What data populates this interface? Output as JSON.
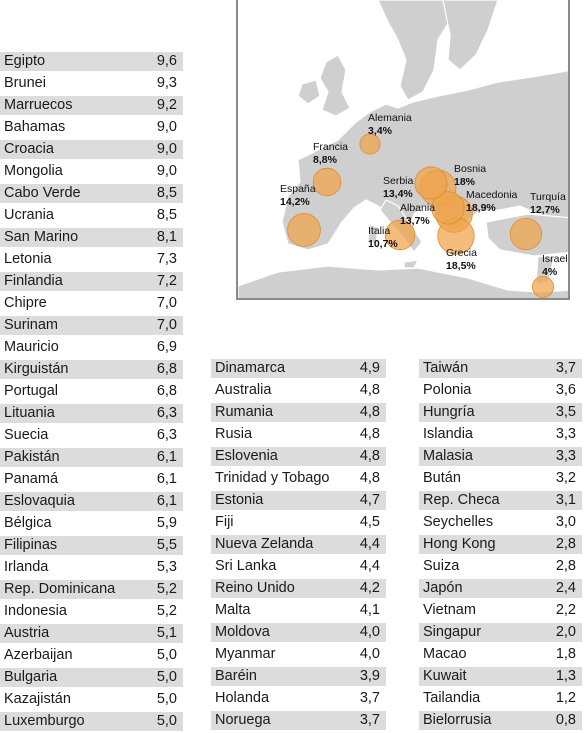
{
  "chart_data": [
    {
      "type": "table",
      "rows": [
        {
          "country": "Egipto",
          "value": "9,6"
        },
        {
          "country": "Brunei",
          "value": "9,3"
        },
        {
          "country": "Marruecos",
          "value": "9,2"
        },
        {
          "country": "Bahamas",
          "value": "9,0"
        },
        {
          "country": "Croacia",
          "value": "9,0"
        },
        {
          "country": "Mongolia",
          "value": "9,0"
        },
        {
          "country": "Cabo Verde",
          "value": "8,5"
        },
        {
          "country": "Ucrania",
          "value": "8,5"
        },
        {
          "country": "San Marino",
          "value": "8,1"
        },
        {
          "country": "Letonia",
          "value": "7,3"
        },
        {
          "country": "Finlandia",
          "value": "7,2"
        },
        {
          "country": "Chipre",
          "value": "7,0"
        },
        {
          "country": "Surinam",
          "value": "7,0"
        },
        {
          "country": "Mauricio",
          "value": "6,9"
        },
        {
          "country": "Kirguistán",
          "value": "6,8"
        },
        {
          "country": "Portugal",
          "value": "6,8"
        },
        {
          "country": "Lituania",
          "value": "6,3"
        },
        {
          "country": "Suecia",
          "value": "6,3"
        },
        {
          "country": "Pakistán",
          "value": "6,1"
        },
        {
          "country": "Panamá",
          "value": "6,1"
        },
        {
          "country": "Eslovaquia",
          "value": "6,1"
        },
        {
          "country": "Bélgica",
          "value": "5,9"
        },
        {
          "country": "Filipinas",
          "value": "5,5"
        },
        {
          "country": "Irlanda",
          "value": "5,3"
        },
        {
          "country": "Rep. Dominicana",
          "value": "5,2"
        },
        {
          "country": "Indonesia",
          "value": "5,2"
        },
        {
          "country": "Austria",
          "value": "5,1"
        },
        {
          "country": "Azerbaijan",
          "value": "5,0"
        },
        {
          "country": "Bulgaria",
          "value": "5,0"
        },
        {
          "country": "Kazajistán",
          "value": "5,0"
        },
        {
          "country": "Luxemburgo",
          "value": "5,0"
        }
      ]
    },
    {
      "type": "table",
      "rows": [
        {
          "country": "Dinamarca",
          "value": "4,9"
        },
        {
          "country": "Australia",
          "value": "4,8"
        },
        {
          "country": "Rumania",
          "value": "4,8"
        },
        {
          "country": "Rusia",
          "value": "4,8"
        },
        {
          "country": "Eslovenia",
          "value": "4,8"
        },
        {
          "country": "Trinidad y Tobago",
          "value": "4,8"
        },
        {
          "country": "Estonia",
          "value": "4,7"
        },
        {
          "country": "Fiji",
          "value": "4,5"
        },
        {
          "country": "Nueva Zelanda",
          "value": "4,4"
        },
        {
          "country": "Sri Lanka",
          "value": "4,4"
        },
        {
          "country": "Reino Unido",
          "value": "4,2"
        },
        {
          "country": "Malta",
          "value": "4,1"
        },
        {
          "country": "Moldova",
          "value": "4,0"
        },
        {
          "country": "Myanmar",
          "value": "4,0"
        },
        {
          "country": "Baréin",
          "value": "3,9"
        },
        {
          "country": "Holanda",
          "value": "3,7"
        },
        {
          "country": "Noruega",
          "value": "3,7"
        }
      ]
    },
    {
      "type": "table",
      "rows": [
        {
          "country": "Taiwán",
          "value": "3,7"
        },
        {
          "country": "Polonia",
          "value": "3,6"
        },
        {
          "country": "Hungría",
          "value": "3,5"
        },
        {
          "country": "Islandia",
          "value": "3,3"
        },
        {
          "country": "Malasia",
          "value": "3,3"
        },
        {
          "country": "Bután",
          "value": "3,2"
        },
        {
          "country": "Rep. Checa",
          "value": "3,1"
        },
        {
          "country": "Seychelles",
          "value": "3,0"
        },
        {
          "country": "Hong Kong",
          "value": "2,8"
        },
        {
          "country": "Suiza",
          "value": "2,8"
        },
        {
          "country": "Japón",
          "value": "2,4"
        },
        {
          "country": "Vietnam",
          "value": "2,2"
        },
        {
          "country": "Singapur",
          "value": "2,0"
        },
        {
          "country": "Macao",
          "value": "1,8"
        },
        {
          "country": "Kuwait",
          "value": "1,3"
        },
        {
          "country": "Tailandia",
          "value": "1,2"
        },
        {
          "country": "Bielorrusia",
          "value": "0,8"
        }
      ]
    },
    {
      "type": "scatter",
      "points": [
        {
          "name": "Alemania",
          "label": "3,4%",
          "value": 3.4
        },
        {
          "name": "Francia",
          "label": "8,8%",
          "value": 8.8
        },
        {
          "name": "España",
          "label": "14,2%",
          "value": 14.2
        },
        {
          "name": "Italia",
          "label": "10,7%",
          "value": 10.7
        },
        {
          "name": "Serbia",
          "label": "13,4%",
          "value": 13.4
        },
        {
          "name": "Bosnia",
          "label": "18%",
          "value": 18
        },
        {
          "name": "Albania",
          "label": "13,7%",
          "value": 13.7
        },
        {
          "name": "Macedonia",
          "label": "18,9%",
          "value": 18.9
        },
        {
          "name": "Grecia",
          "label": "18,5%",
          "value": 18.5
        },
        {
          "name": "Turquía",
          "label": "12,7%",
          "value": 12.7
        },
        {
          "name": "Israel",
          "label": "4%",
          "value": 4
        }
      ]
    }
  ]
}
